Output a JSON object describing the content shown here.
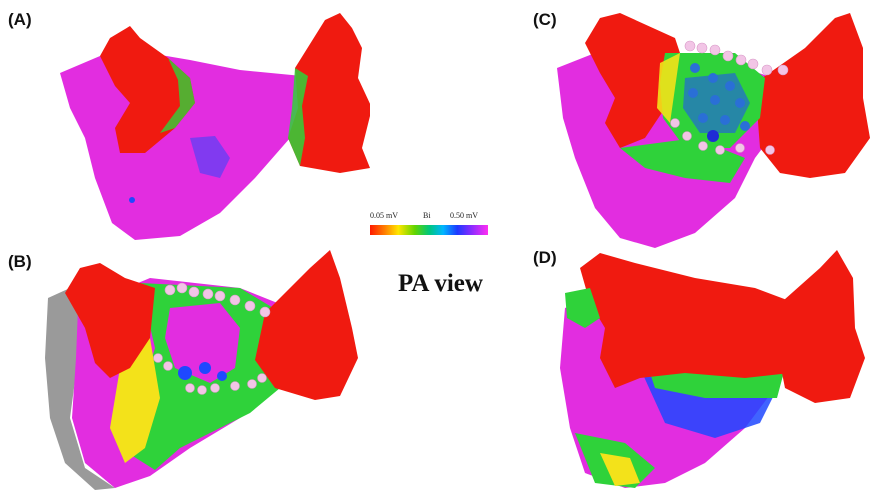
{
  "panels": {
    "a": {
      "label": "(A)"
    },
    "b": {
      "label": "(B)"
    },
    "c": {
      "label": "(C)"
    },
    "d": {
      "label": "(D)"
    }
  },
  "scale": {
    "min_label": "0.05  mV",
    "mid_label": "Bi",
    "max_label": "0.50  mV"
  },
  "view_label": "PA view",
  "colors": {
    "red": "#f01a10",
    "magenta": "#e22de0",
    "green": "#2fd23a",
    "blue": "#1f48ff",
    "yellow": "#f3e21a",
    "gray": "#9a9a9a",
    "pink_dot": "#f2c5e6",
    "blue_dot": "#2a6fd6"
  }
}
